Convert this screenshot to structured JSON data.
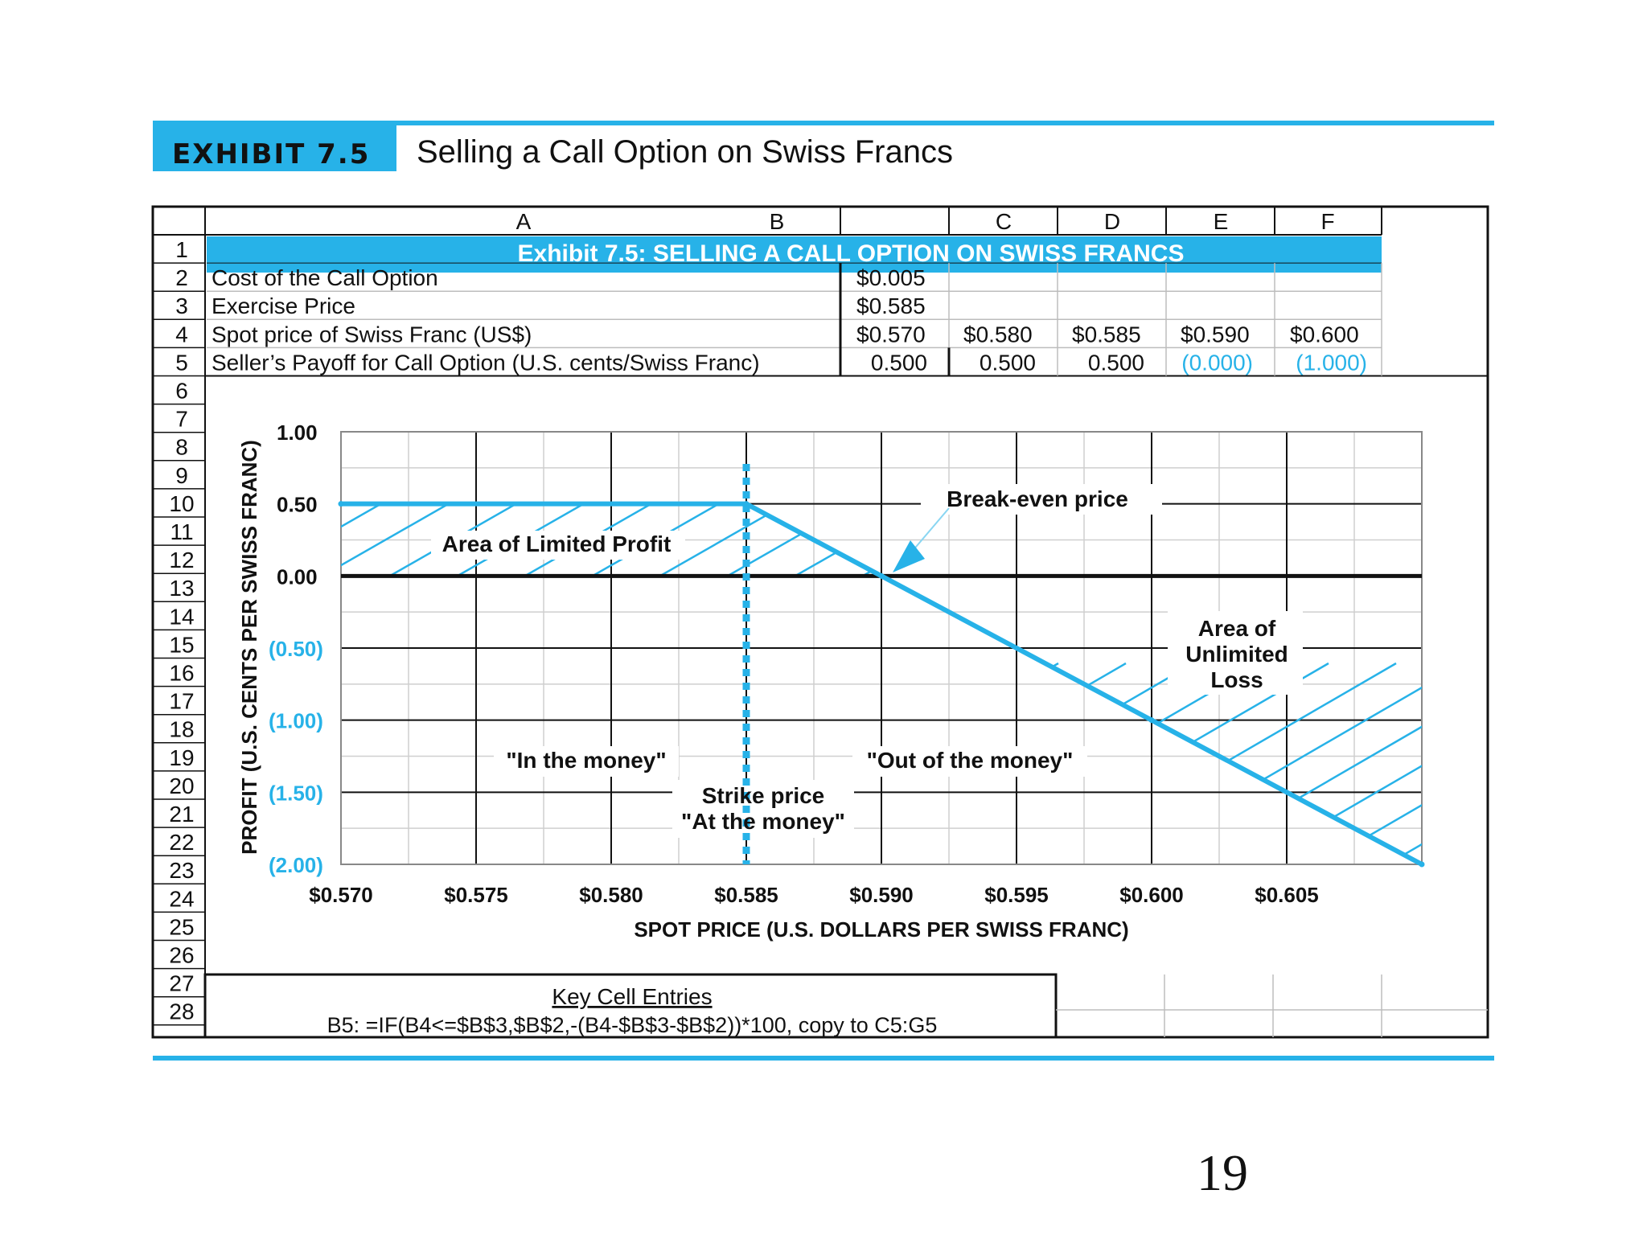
{
  "exhibit": {
    "label": "EXHIBIT 7.5",
    "title": "Selling a Call Option on Swiss Francs"
  },
  "sheet": {
    "column_headers": [
      "A",
      "B",
      "C",
      "D",
      "E",
      "F"
    ],
    "row_numbers": [
      "1",
      "2",
      "3",
      "4",
      "5",
      "6",
      "7",
      "8",
      "9",
      "10",
      "11",
      "12",
      "13",
      "14",
      "15",
      "16",
      "17",
      "18",
      "19",
      "20",
      "21",
      "22",
      "23",
      "24",
      "25",
      "26",
      "27",
      "28"
    ],
    "banner": "Exhibit 7.5: SELLING A CALL OPTION ON SWISS FRANCS",
    "rows": [
      {
        "label": "Cost of the Call Option",
        "values": [
          "$0.005"
        ]
      },
      {
        "label": "Exercise Price",
        "values": [
          "$0.585"
        ]
      },
      {
        "label": "Spot price of Swiss Franc (US$)",
        "values": [
          "$0.570",
          "$0.580",
          "$0.585",
          "$0.590",
          "$0.600"
        ]
      },
      {
        "label": "Seller’s Payoff for Call Option (U.S. cents/Swiss Franc)",
        "values": [
          "0.500",
          "0.500",
          "0.500",
          "(0.000)",
          "(1.000)"
        ]
      }
    ],
    "key_title": "Key Cell Entries",
    "key_formula": "B5:  =IF(B4<=$B$3,$B$2,-(B4-$B$3-$B$2))*100, copy to C5:G5"
  },
  "colors": {
    "accent": "#27b2e8",
    "grid_dark": "#111111",
    "grid_light": "#cfcfcf",
    "negative_value": "#27b2e8"
  },
  "chart_data": {
    "type": "line",
    "xlabel": "SPOT PRICE (U.S. DOLLARS PER SWISS FRANC)",
    "ylabel": "PROFIT (U.S. CENTS PER SWISS FRANC)",
    "xlim": [
      0.57,
      0.61
    ],
    "ylim": [
      -2.0,
      1.0
    ],
    "x_ticks": [
      {
        "value": 0.57,
        "label": "$0.570"
      },
      {
        "value": 0.575,
        "label": "$0.575"
      },
      {
        "value": 0.58,
        "label": "$0.580"
      },
      {
        "value": 0.585,
        "label": "$0.585"
      },
      {
        "value": 0.59,
        "label": "$0.590"
      },
      {
        "value": 0.595,
        "label": "$0.595"
      },
      {
        "value": 0.6,
        "label": "$0.600"
      },
      {
        "value": 0.605,
        "label": "$0.605"
      }
    ],
    "y_ticks": [
      {
        "value": 1.0,
        "label": "1.00",
        "negative": false
      },
      {
        "value": 0.5,
        "label": "0.50",
        "negative": false
      },
      {
        "value": 0.0,
        "label": "0.00",
        "negative": false
      },
      {
        "value": -0.5,
        "label": "(0.50)",
        "negative": true
      },
      {
        "value": -1.0,
        "label": "(1.00)",
        "negative": true
      },
      {
        "value": -1.5,
        "label": "(1.50)",
        "negative": true
      },
      {
        "value": -2.0,
        "label": "(2.00)",
        "negative": true
      }
    ],
    "series": [
      {
        "x": [
          0.57,
          0.585,
          0.59,
          0.6,
          0.61
        ],
        "y": [
          0.5,
          0.5,
          0.0,
          -1.0,
          -2.0
        ]
      }
    ],
    "strike": 0.585,
    "break_even": 0.59,
    "grid": true,
    "annotations": {
      "limited_profit": "Area of Limited Profit",
      "break_even": "Break-even price",
      "unlimited_loss": [
        "Area of",
        "Unlimited",
        "Loss"
      ],
      "in_money": "\"In the money\"",
      "out_money": "\"Out of the money\"",
      "strike": [
        "Strike price",
        "\"At the money\""
      ]
    }
  },
  "page_number": "19"
}
